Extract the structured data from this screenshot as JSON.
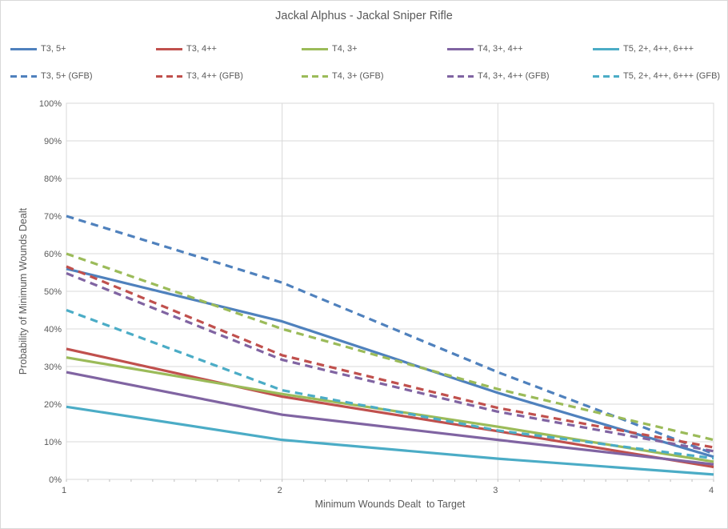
{
  "title": "Jackal Alphus - Jackal Sniper Rifle",
  "colors": {
    "blue": "#4F81BD",
    "red": "#C0504D",
    "green": "#9BBB59",
    "purple": "#8064A2",
    "teal": "#4BACC6",
    "text": "#595959",
    "gridline": "#D9D9D9",
    "tick": "#BFBFBF"
  },
  "chart_data": {
    "type": "line",
    "title": "Jackal Alphus - Jackal Sniper Rifle",
    "xlabel": "Minimum Wounds Dealt  to Target",
    "ylabel": "Probability of Minimum Wounds Dealt",
    "x": [
      1,
      2,
      3,
      4
    ],
    "xlim": [
      1,
      4
    ],
    "ylim": [
      0,
      100
    ],
    "x_ticks": [
      "1",
      "2",
      "3",
      "4"
    ],
    "y_ticks": [
      "0%",
      "10%",
      "20%",
      "30%",
      "40%",
      "50%",
      "60%",
      "70%",
      "80%",
      "90%",
      "100%"
    ],
    "x_minor_tick_step": 0.1,
    "grid": true,
    "legend_position": "top",
    "series": [
      {
        "name": "T3, 5+",
        "color": "#4F81BD",
        "dash": false,
        "values": [
          56.0,
          42.0,
          23.0,
          6.0
        ]
      },
      {
        "name": "T3, 4++",
        "color": "#C0504D",
        "dash": false,
        "values": [
          34.7,
          22.0,
          12.8,
          3.3
        ]
      },
      {
        "name": "T4, 3+",
        "color": "#9BBB59",
        "dash": false,
        "values": [
          32.4,
          22.7,
          14.0,
          4.7
        ]
      },
      {
        "name": "T4, 3+, 4++",
        "color": "#8064A2",
        "dash": false,
        "values": [
          28.5,
          17.2,
          10.5,
          4.0
        ]
      },
      {
        "name": "T5, 2+, 4++, 6+++",
        "color": "#4BACC6",
        "dash": false,
        "values": [
          19.3,
          10.5,
          5.5,
          1.3
        ]
      },
      {
        "name": "T3, 5+ (GFB)",
        "color": "#4F81BD",
        "dash": true,
        "values": [
          70.0,
          52.3,
          28.5,
          6.8
        ]
      },
      {
        "name": "T3, 4++ (GFB)",
        "color": "#C0504D",
        "dash": true,
        "values": [
          56.6,
          33.0,
          19.0,
          8.5
        ]
      },
      {
        "name": "T4, 3+ (GFB)",
        "color": "#9BBB59",
        "dash": true,
        "values": [
          60.0,
          40.0,
          24.0,
          10.5
        ]
      },
      {
        "name": "T4, 3+, 4++ (GFB)",
        "color": "#8064A2",
        "dash": true,
        "values": [
          54.8,
          31.8,
          18.0,
          7.5
        ]
      },
      {
        "name": "T5, 2+, 4++, 6+++ (GFB)",
        "color": "#4BACC6",
        "dash": true,
        "values": [
          45.0,
          23.7,
          13.0,
          5.6
        ]
      }
    ]
  }
}
